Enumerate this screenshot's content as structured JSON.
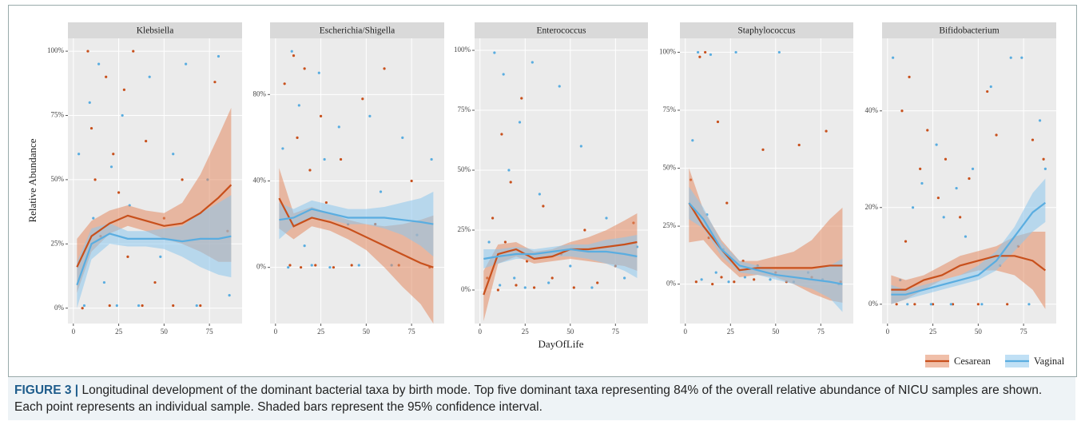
{
  "chart_data": [
    {
      "type": "scatter",
      "title": "Klebsiella",
      "xlim": [
        -3,
        93
      ],
      "xticks": [
        0,
        25,
        50,
        75
      ],
      "ylim": [
        -6,
        105
      ],
      "yticks": [
        {
          "value": 0,
          "label": "0%"
        },
        {
          "value": 25,
          "label": "25%"
        },
        {
          "value": 50,
          "label": "50%"
        },
        {
          "value": 75,
          "label": "75%"
        },
        {
          "value": 100,
          "label": "100%"
        }
      ],
      "series": [
        {
          "name": "Cesarean",
          "color": "#c8501c",
          "x": [
            5,
            8,
            10,
            12,
            15,
            18,
            20,
            22,
            25,
            28,
            30,
            33,
            38,
            40,
            45,
            50,
            55,
            60,
            70,
            78,
            85
          ],
          "values": [
            0,
            100,
            70,
            50,
            28,
            90,
            1,
            60,
            45,
            85,
            20,
            100,
            1,
            65,
            10,
            35,
            1,
            50,
            1,
            88,
            30
          ],
          "trend": {
            "x": [
              2,
              10,
              20,
              30,
              40,
              50,
              60,
              70,
              80,
              87
            ],
            "values": [
              16,
              28,
              33,
              36,
              34,
              32,
              33,
              37,
              43,
              48
            ],
            "lower": [
              6,
              22,
              29,
              32,
              30,
              27,
              25,
              22,
              18,
              18
            ],
            "upper": [
              27,
              34,
              38,
              40,
              38,
              37,
              41,
              52,
              67,
              78
            ]
          }
        },
        {
          "name": "Vaginal",
          "color": "#5aade0",
          "x": [
            3,
            6,
            9,
            11,
            14,
            17,
            21,
            24,
            27,
            31,
            36,
            42,
            48,
            55,
            62,
            68,
            74,
            80,
            86
          ],
          "values": [
            60,
            1,
            80,
            35,
            95,
            10,
            55,
            1,
            75,
            40,
            1,
            90,
            20,
            60,
            95,
            1,
            50,
            98,
            5
          ],
          "trend": {
            "x": [
              2,
              10,
              20,
              30,
              40,
              50,
              60,
              70,
              80,
              87
            ],
            "values": [
              9,
              25,
              29,
              27,
              27,
              27,
              26,
              27,
              27,
              28
            ],
            "lower": [
              0,
              19,
              25,
              24,
              24,
              23,
              20,
              16,
              13,
              12
            ],
            "upper": [
              18,
              31,
              33,
              30,
              30,
              31,
              32,
              37,
              41,
              44
            ]
          }
        }
      ]
    },
    {
      "type": "scatter",
      "title": "Escherichia/Shigella",
      "xlim": [
        -3,
        93
      ],
      "xticks": [
        0,
        25,
        50,
        75
      ],
      "ylim": [
        -26,
        106
      ],
      "yticks": [
        {
          "value": 0,
          "label": "0%"
        },
        {
          "value": 40,
          "label": "40%"
        },
        {
          "value": 80,
          "label": "80%"
        }
      ],
      "series": [
        {
          "name": "Cesarean",
          "color": "#c8501c",
          "x": [
            5,
            8,
            10,
            12,
            14,
            16,
            19,
            22,
            25,
            28,
            32,
            36,
            42,
            48,
            55,
            60,
            68,
            75,
            85
          ],
          "values": [
            85,
            1,
            98,
            60,
            0,
            92,
            45,
            1,
            70,
            30,
            0,
            50,
            1,
            78,
            20,
            92,
            1,
            40,
            0
          ],
          "trend": {
            "x": [
              2,
              10,
              20,
              30,
              40,
              50,
              60,
              70,
              80,
              87
            ],
            "values": [
              32,
              19,
              23,
              21,
              18,
              14,
              10,
              6,
              2,
              0
            ],
            "lower": [
              18,
              13,
              19,
              17,
              13,
              8,
              0,
              -9,
              -17,
              -26
            ],
            "upper": [
              46,
              25,
              28,
              25,
              22,
              20,
              19,
              20,
              22,
              24
            ]
          }
        },
        {
          "name": "Vaginal",
          "color": "#5aade0",
          "x": [
            4,
            7,
            9,
            13,
            16,
            20,
            24,
            27,
            30,
            35,
            40,
            46,
            52,
            58,
            64,
            70,
            78,
            86
          ],
          "values": [
            55,
            0,
            100,
            75,
            10,
            1,
            90,
            50,
            0,
            65,
            20,
            1,
            70,
            35,
            1,
            60,
            15,
            50
          ],
          "trend": {
            "x": [
              2,
              10,
              20,
              30,
              40,
              50,
              60,
              70,
              80,
              87
            ],
            "values": [
              22,
              23,
              27,
              25,
              23,
              23,
              23,
              22,
              21,
              20
            ],
            "lower": [
              13,
              19,
              23,
              22,
              20,
              20,
              18,
              15,
              10,
              5
            ],
            "upper": [
              30,
              27,
              31,
              29,
              27,
              27,
              28,
              30,
              32,
              35
            ]
          }
        }
      ]
    },
    {
      "type": "scatter",
      "title": "Enterococcus",
      "xlim": [
        -3,
        93
      ],
      "xticks": [
        0,
        25,
        50,
        75
      ],
      "ylim": [
        -14,
        105
      ],
      "yticks": [
        {
          "value": 0,
          "label": "0%"
        },
        {
          "value": 25,
          "label": "25%"
        },
        {
          "value": 50,
          "label": "50%"
        },
        {
          "value": 75,
          "label": "75%"
        },
        {
          "value": 100,
          "label": "100%"
        }
      ],
      "series": [
        {
          "name": "Cesarean",
          "color": "#c8501c",
          "x": [
            4,
            7,
            10,
            12,
            14,
            17,
            20,
            23,
            26,
            30,
            35,
            40,
            45,
            52,
            58,
            65,
            75,
            85
          ],
          "values": [
            5,
            30,
            0,
            65,
            20,
            45,
            2,
            80,
            12,
            1,
            35,
            5,
            15,
            1,
            25,
            3,
            10,
            28
          ],
          "trend": {
            "x": [
              2,
              10,
              20,
              30,
              40,
              50,
              60,
              70,
              80,
              87
            ],
            "values": [
              -2,
              15,
              17,
              13,
              14,
              17,
              17,
              18,
              19,
              20
            ],
            "lower": [
              -13,
              11,
              14,
              11,
              12,
              13,
              12,
              11,
              10,
              8
            ],
            "upper": [
              8,
              19,
              20,
              16,
              17,
              20,
              22,
              25,
              29,
              32
            ]
          }
        },
        {
          "name": "Vaginal",
          "color": "#5aade0",
          "x": [
            5,
            8,
            11,
            13,
            16,
            19,
            22,
            25,
            29,
            33,
            38,
            44,
            50,
            56,
            62,
            70,
            80,
            87
          ],
          "values": [
            20,
            99,
            2,
            90,
            50,
            5,
            70,
            1,
            95,
            40,
            3,
            85,
            10,
            60,
            1,
            30,
            5,
            18
          ],
          "trend": {
            "x": [
              2,
              10,
              20,
              30,
              40,
              50,
              60,
              70,
              80,
              87
            ],
            "values": [
              13,
              14,
              15,
              15,
              16,
              17,
              16,
              16,
              15,
              14
            ],
            "lower": [
              9,
              11,
              13,
              13,
              14,
              14,
              13,
              11,
              8,
              5
            ],
            "upper": [
              17,
              17,
              18,
              17,
              18,
              19,
              19,
              21,
              22,
              23
            ]
          }
        }
      ]
    },
    {
      "type": "scatter",
      "title": "Staphylococcus",
      "xlim": [
        -3,
        93
      ],
      "xticks": [
        0,
        25,
        50,
        75
      ],
      "ylim": [
        -17,
        106
      ],
      "yticks": [
        {
          "value": 0,
          "label": "0%"
        },
        {
          "value": 25,
          "label": "25%"
        },
        {
          "value": 50,
          "label": "50%"
        },
        {
          "value": 75,
          "label": "75%"
        },
        {
          "value": 100,
          "label": "100%"
        }
      ],
      "series": [
        {
          "name": "Cesarean",
          "color": "#c8501c",
          "x": [
            3,
            6,
            8,
            11,
            13,
            15,
            18,
            20,
            23,
            27,
            32,
            38,
            43,
            50,
            56,
            63,
            70,
            78,
            86
          ],
          "values": [
            45,
            1,
            98,
            100,
            20,
            0,
            70,
            3,
            35,
            1,
            10,
            2,
            58,
            5,
            1,
            60,
            3,
            66,
            1
          ],
          "trend": {
            "x": [
              2,
              10,
              20,
              30,
              40,
              50,
              60,
              70,
              80,
              87
            ],
            "values": [
              35,
              25,
              15,
              6,
              7,
              7,
              7,
              7,
              8,
              8
            ],
            "lower": [
              18,
              19,
              10,
              3,
              4,
              3,
              0,
              -4,
              -7,
              -8
            ],
            "upper": [
              50,
              32,
              19,
              10,
              10,
              12,
              14,
              19,
              28,
              33
            ]
          }
        },
        {
          "name": "Vaginal",
          "color": "#5aade0",
          "x": [
            4,
            7,
            9,
            12,
            14,
            17,
            21,
            24,
            28,
            33,
            40,
            47,
            52,
            60,
            68,
            76,
            85
          ],
          "values": [
            62,
            100,
            2,
            30,
            99,
            5,
            15,
            1,
            100,
            3,
            8,
            2,
            100,
            1,
            5,
            2,
            0
          ],
          "trend": {
            "x": [
              2,
              10,
              20,
              30,
              40,
              50,
              60,
              70,
              80,
              87
            ],
            "values": [
              35,
              28,
              15,
              8,
              6,
              4,
              3,
              2,
              1,
              0
            ],
            "lower": [
              28,
              24,
              12,
              5,
              4,
              2,
              0,
              -2,
              -6,
              -12
            ],
            "upper": [
              42,
              33,
              18,
              10,
              8,
              6,
              6,
              6,
              8,
              11
            ]
          }
        }
      ]
    },
    {
      "type": "scatter",
      "title": "Bifidobacterium",
      "xlim": [
        -3,
        93
      ],
      "xticks": [
        0,
        25,
        50,
        75
      ],
      "ylim": [
        -4,
        55
      ],
      "yticks": [
        {
          "value": 0,
          "label": "0%"
        },
        {
          "value": 20,
          "label": "20%"
        },
        {
          "value": 40,
          "label": "40%"
        }
      ],
      "series": [
        {
          "name": "Cesarean",
          "color": "#c8501c",
          "x": [
            5,
            8,
            10,
            12,
            15,
            18,
            22,
            25,
            28,
            32,
            36,
            40,
            45,
            50,
            55,
            60,
            66,
            72,
            80,
            86
          ],
          "values": [
            0,
            40,
            13,
            47,
            0,
            28,
            36,
            0,
            22,
            30,
            0,
            18,
            26,
            0,
            44,
            35,
            0,
            12,
            34,
            30
          ],
          "trend": {
            "x": [
              2,
              10,
              20,
              30,
              40,
              50,
              60,
              70,
              80,
              87
            ],
            "values": [
              3,
              3,
              5,
              6,
              8,
              9,
              10,
              10,
              9,
              7
            ],
            "lower": [
              0,
              1,
              3,
              5,
              6,
              7,
              7,
              6,
              3,
              -1
            ],
            "upper": [
              6,
              5,
              6,
              8,
              10,
              11,
              12,
              14,
              15,
              15
            ]
          }
        },
        {
          "name": "Vaginal",
          "color": "#5aade0",
          "x": [
            3,
            7,
            11,
            14,
            19,
            24,
            27,
            31,
            35,
            38,
            43,
            47,
            52,
            57,
            62,
            68,
            74,
            78,
            84,
            87
          ],
          "values": [
            51,
            5,
            0,
            20,
            25,
            0,
            33,
            18,
            0,
            24,
            14,
            28,
            0,
            45,
            8,
            51,
            51,
            0,
            38,
            28
          ],
          "trend": {
            "x": [
              2,
              10,
              20,
              30,
              40,
              50,
              60,
              70,
              80,
              87
            ],
            "values": [
              2,
              2,
              3,
              4,
              5,
              6,
              9,
              14,
              19,
              21
            ],
            "lower": [
              0,
              1,
              2,
              3,
              4,
              5,
              7,
              11,
              15,
              17
            ],
            "upper": [
              4,
              3,
              4,
              5,
              6,
              8,
              11,
              16,
              23,
              26
            ]
          }
        }
      ]
    }
  ],
  "xlabel": "DayOfLife",
  "ylabel": "Relative Abundance",
  "caption": {
    "label": "FIGURE 3 |",
    "text": "Longitudinal development of the dominant bacterial taxa by birth mode. Top five dominant taxa representing 84% of the overall relative abundance of NICU samples are shown. Each point represents an individual sample. Shaded bars represent the 95% confidence interval."
  }
}
